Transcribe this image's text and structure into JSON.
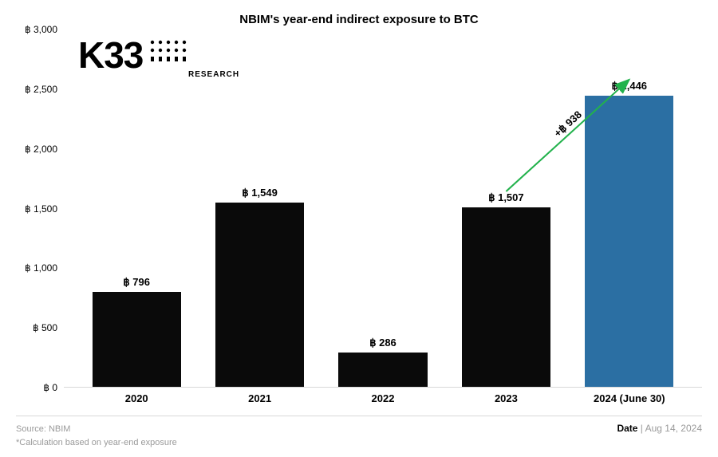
{
  "title": "NBIM's year-end indirect exposure to BTC",
  "logo": {
    "text": "K33",
    "sub": "RESEARCH"
  },
  "chart": {
    "type": "bar",
    "y": {
      "min": 0,
      "max": 3000,
      "step": 500,
      "prefix": "฿ ",
      "ticks": [
        0,
        500,
        1000,
        1500,
        2000,
        2500,
        3000
      ]
    },
    "categories": [
      "2020",
      "2021",
      "2022",
      "2023",
      "2024 (June 30)"
    ],
    "values": [
      796,
      1549,
      286,
      1507,
      2446
    ],
    "value_labels": [
      "฿ 796",
      "฿ 1,549",
      "฿ 286",
      "฿ 1,507",
      "฿ 2,446"
    ],
    "bar_colors": [
      "#0a0a0a",
      "#0a0a0a",
      "#0a0a0a",
      "#0a0a0a",
      "#2b6fa3"
    ],
    "arrow": {
      "from_index": 3,
      "to_index": 4,
      "label": "+฿ 938",
      "color": "#22b24c"
    },
    "background": "#ffffff",
    "axis_color": "#d8d8d8"
  },
  "footer": {
    "source": "Source:  NBIM",
    "note": "*Calculation based on year-end exposure",
    "date_label": "Date",
    "date_sep": " | ",
    "date_value": "Aug 14, 2024"
  }
}
